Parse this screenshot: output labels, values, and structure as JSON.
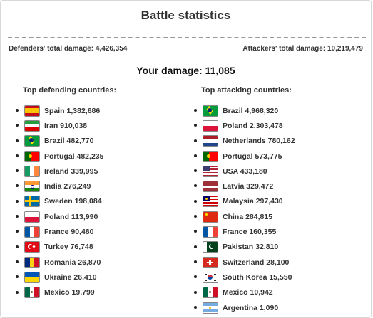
{
  "panel": {
    "title": "Battle statistics",
    "defenders_total": "Defenders' total damage: 4,426,354",
    "attackers_total": "Attackers' total damage: 10,219,479",
    "your_damage": "Your damage: 11,085"
  },
  "defenders": {
    "heading": "Top defending countries:",
    "items": [
      {
        "flag": "spain-flag",
        "text": "Spain 1,382,686"
      },
      {
        "flag": "iran-flag",
        "text": "Iran 910,038"
      },
      {
        "flag": "brazil-flag",
        "text": "Brazil 482,770"
      },
      {
        "flag": "portugal-flag",
        "text": "Portugal 482,235"
      },
      {
        "flag": "ireland-flag",
        "text": "Ireland 339,995"
      },
      {
        "flag": "india-flag",
        "text": "India 276,249"
      },
      {
        "flag": "sweden-flag",
        "text": "Sweden 198,084"
      },
      {
        "flag": "poland-flag",
        "text": "Poland 113,990"
      },
      {
        "flag": "france-flag",
        "text": "France 90,480"
      },
      {
        "flag": "turkey-flag",
        "text": "Turkey 76,748"
      },
      {
        "flag": "romania-flag",
        "text": "Romania 26,870"
      },
      {
        "flag": "ukraine-flag",
        "text": "Ukraine 26,410"
      },
      {
        "flag": "mexico-flag",
        "text": "Mexico 19,799"
      }
    ]
  },
  "attackers": {
    "heading": "Top attacking countries:",
    "items": [
      {
        "flag": "brazil-flag",
        "text": "Brazil 4,968,320"
      },
      {
        "flag": "poland-flag",
        "text": "Poland 2,303,478"
      },
      {
        "flag": "netherlands-flag",
        "text": "Netherlands 780,162"
      },
      {
        "flag": "portugal-flag",
        "text": "Portugal 573,775"
      },
      {
        "flag": "usa-flag",
        "text": "USA 433,180"
      },
      {
        "flag": "latvia-flag",
        "text": "Latvia 329,472"
      },
      {
        "flag": "malaysia-flag",
        "text": "Malaysia 297,430"
      },
      {
        "flag": "china-flag",
        "text": "China 284,815"
      },
      {
        "flag": "france-flag",
        "text": "France 160,355"
      },
      {
        "flag": "pakistan-flag",
        "text": "Pakistan 32,810"
      },
      {
        "flag": "switzerland-flag",
        "text": "Switzerland 28,100"
      },
      {
        "flag": "south-korea-flag",
        "text": "South Korea 15,550"
      },
      {
        "flag": "mexico-flag",
        "text": "Mexico 10,942"
      },
      {
        "flag": "argentina-flag",
        "text": "Argentina 1,090"
      }
    ]
  }
}
